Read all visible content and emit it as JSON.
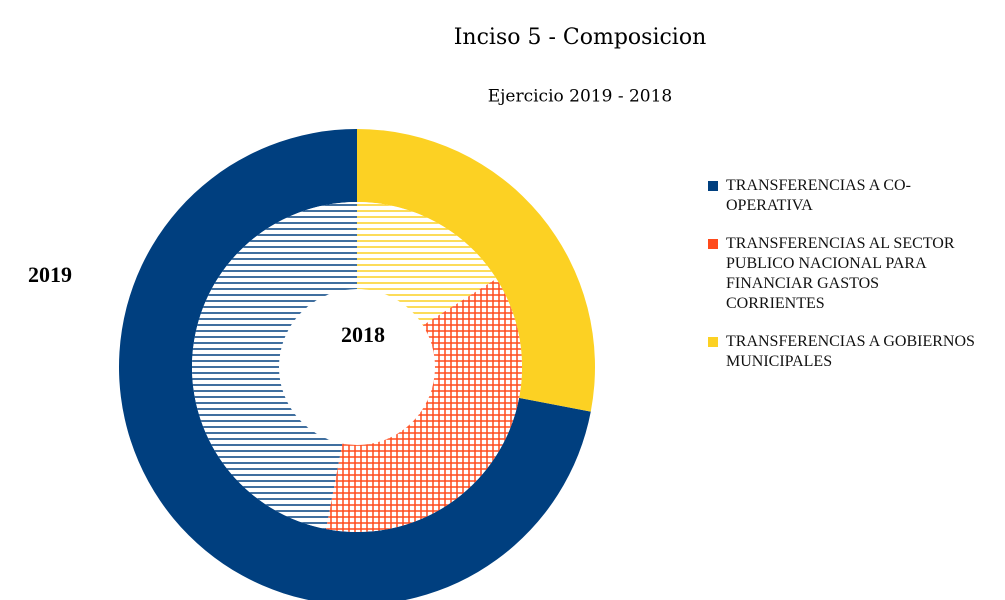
{
  "chart_data": {
    "type": "donut",
    "title": "Inciso 5 - Composicion",
    "subtitle": "Ejercicio 2019 - 2018",
    "categories": [
      "TRANSFERENCIAS A CO-OPERATIVA",
      "TRANSFERENCIAS AL SECTOR PUBLICO NACIONAL PARA FINANCIAR GASTOS CORRIENTES",
      "TRANSFERENCIAS A GOBIERNOS MUNICIPALES"
    ],
    "colors": [
      "#003f7f",
      "#ff4a1c",
      "#fcd123"
    ],
    "series": [
      {
        "name": "2019",
        "values": [
          72,
          0,
          28
        ],
        "hatch": false
      },
      {
        "name": "2018",
        "values": [
          47,
          37,
          16
        ],
        "hatch": true
      }
    ],
    "legend": "right"
  }
}
